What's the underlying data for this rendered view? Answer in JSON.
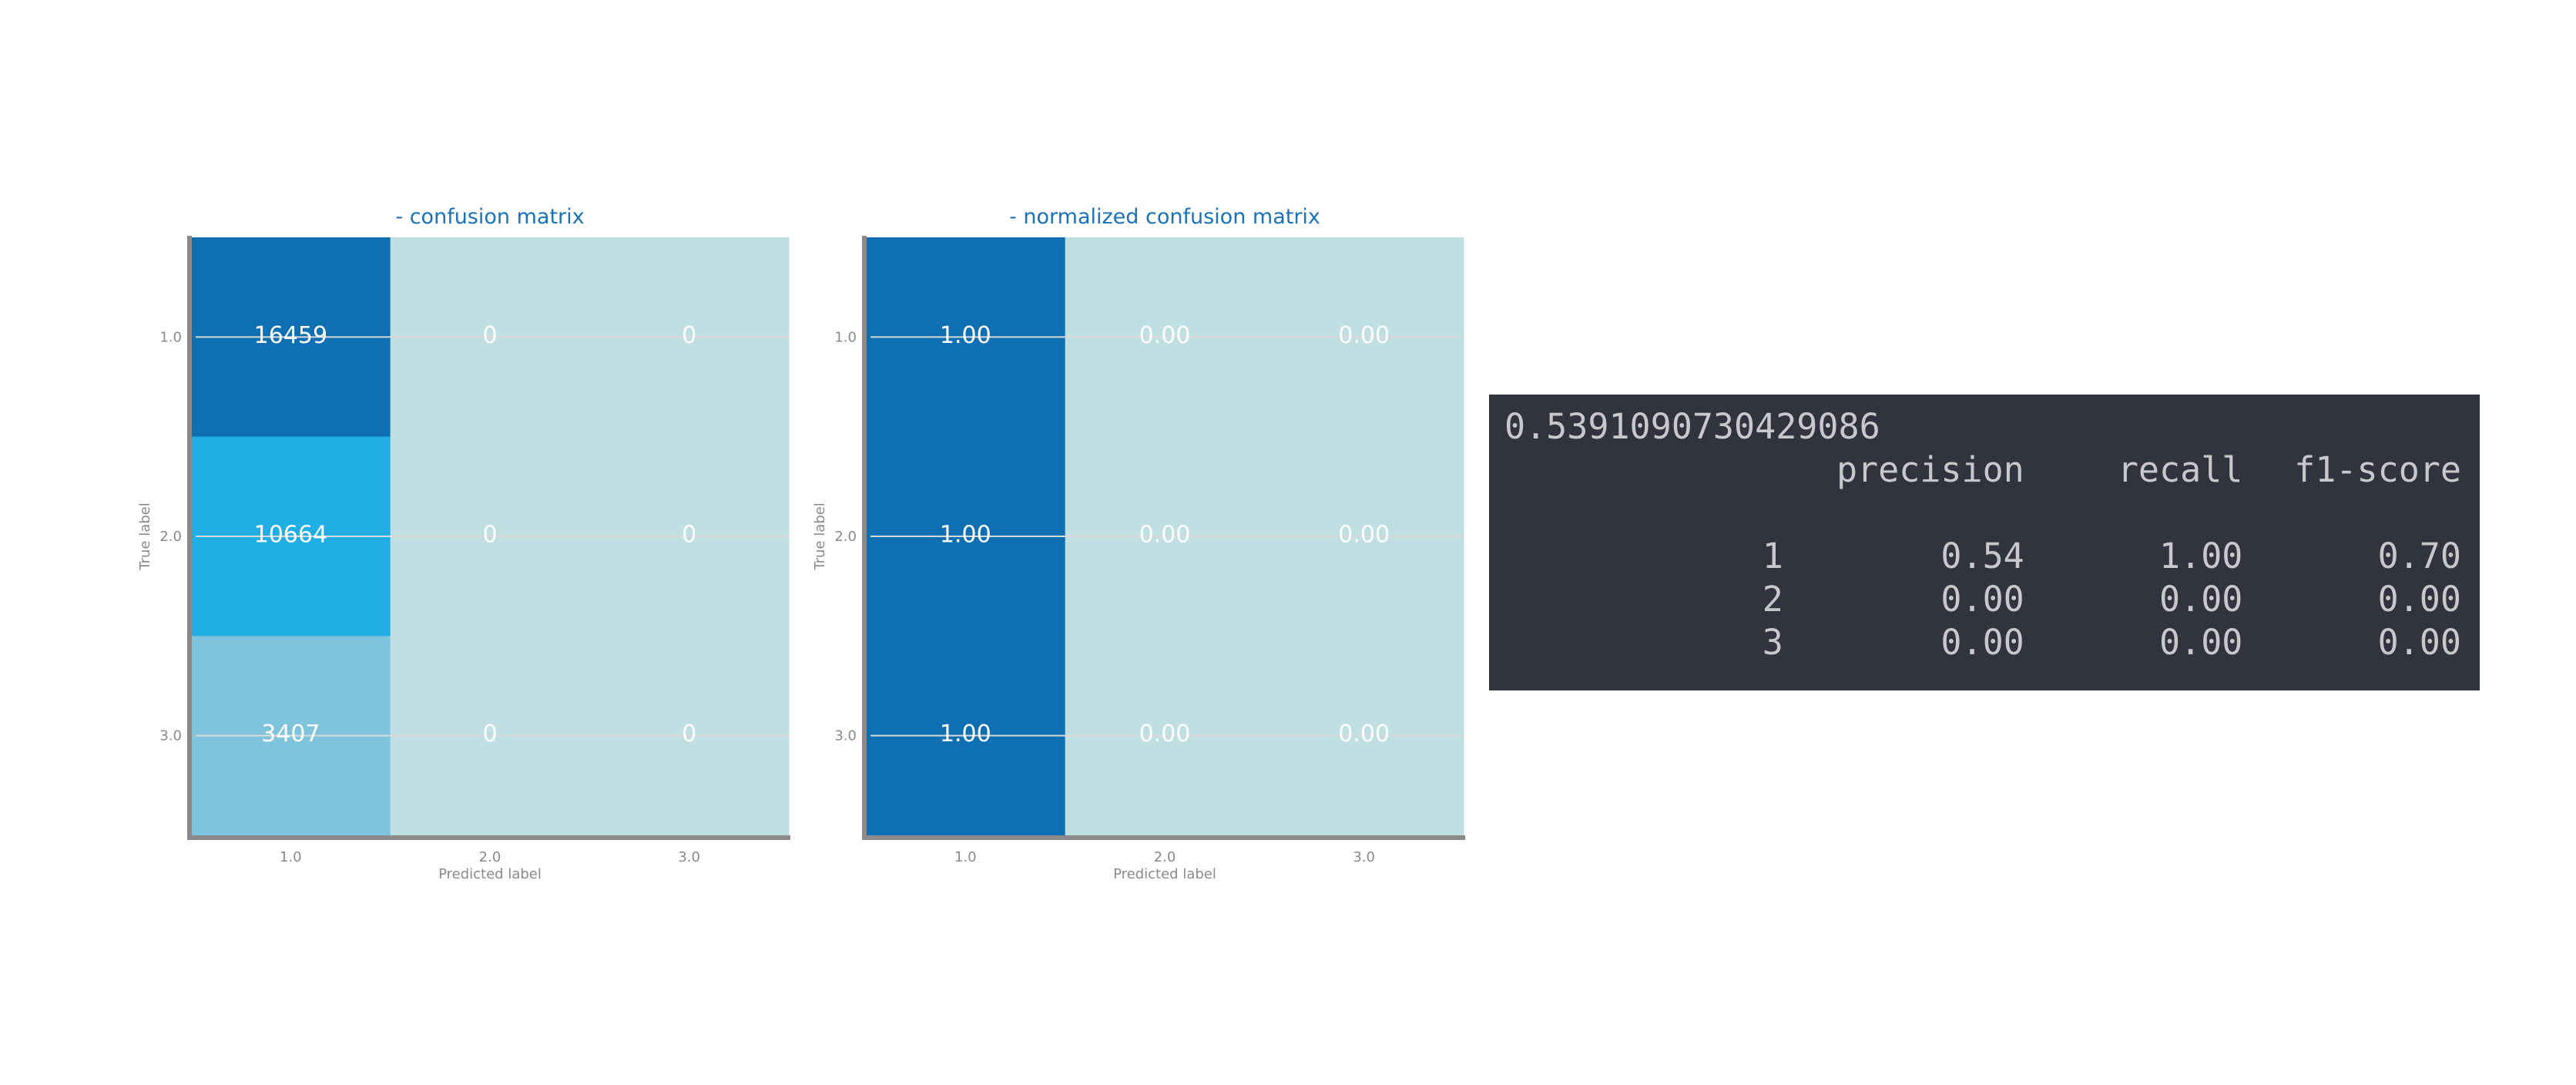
{
  "chart_data": [
    {
      "type": "heatmap",
      "title": "- confusion matrix",
      "xlabel": "Predicted label",
      "ylabel": "True label",
      "x_ticks": [
        "1.0",
        "2.0",
        "3.0"
      ],
      "y_ticks": [
        "1.0",
        "2.0",
        "3.0"
      ],
      "values": [
        [
          16459,
          0,
          0
        ],
        [
          10664,
          0,
          0
        ],
        [
          3407,
          0,
          0
        ]
      ],
      "labels": [
        [
          "16459",
          "0",
          "0"
        ],
        [
          "10664",
          "0",
          "0"
        ],
        [
          "3407",
          "0",
          "0"
        ]
      ],
      "colormap": [
        "#bfdfe3",
        "#56b4da",
        "#1eaee6",
        "#0e70b3"
      ]
    },
    {
      "type": "heatmap",
      "title": "- normalized confusion matrix",
      "xlabel": "Predicted label",
      "ylabel": "True label",
      "x_ticks": [
        "1.0",
        "2.0",
        "3.0"
      ],
      "y_ticks": [
        "1.0",
        "2.0",
        "3.0"
      ],
      "values": [
        [
          1.0,
          0.0,
          0.0
        ],
        [
          1.0,
          0.0,
          0.0
        ],
        [
          1.0,
          0.0,
          0.0
        ]
      ],
      "labels": [
        [
          "1.00",
          "0.00",
          "0.00"
        ],
        [
          "1.00",
          "0.00",
          "0.00"
        ],
        [
          "1.00",
          "0.00",
          "0.00"
        ]
      ],
      "colormap": [
        "#bfdfe3",
        "#0e70b3"
      ]
    }
  ],
  "report": {
    "accuracy": "0.5391090730429086",
    "headers": [
      "precision",
      "recall",
      "f1-score"
    ],
    "rows": [
      {
        "label": "1",
        "precision": "0.54",
        "recall": "1.00",
        "f1": "0.70"
      },
      {
        "label": "2",
        "precision": "0.00",
        "recall": "0.00",
        "f1": "0.00"
      },
      {
        "label": "3",
        "precision": "0.00",
        "recall": "0.00",
        "f1": "0.00"
      }
    ]
  },
  "colors": {
    "title": "#1a72b8",
    "axis": "#8a8a8a",
    "gridline": "#d9d9d9",
    "report_bg": "#31333f",
    "report_text": "#c8c8cc"
  }
}
